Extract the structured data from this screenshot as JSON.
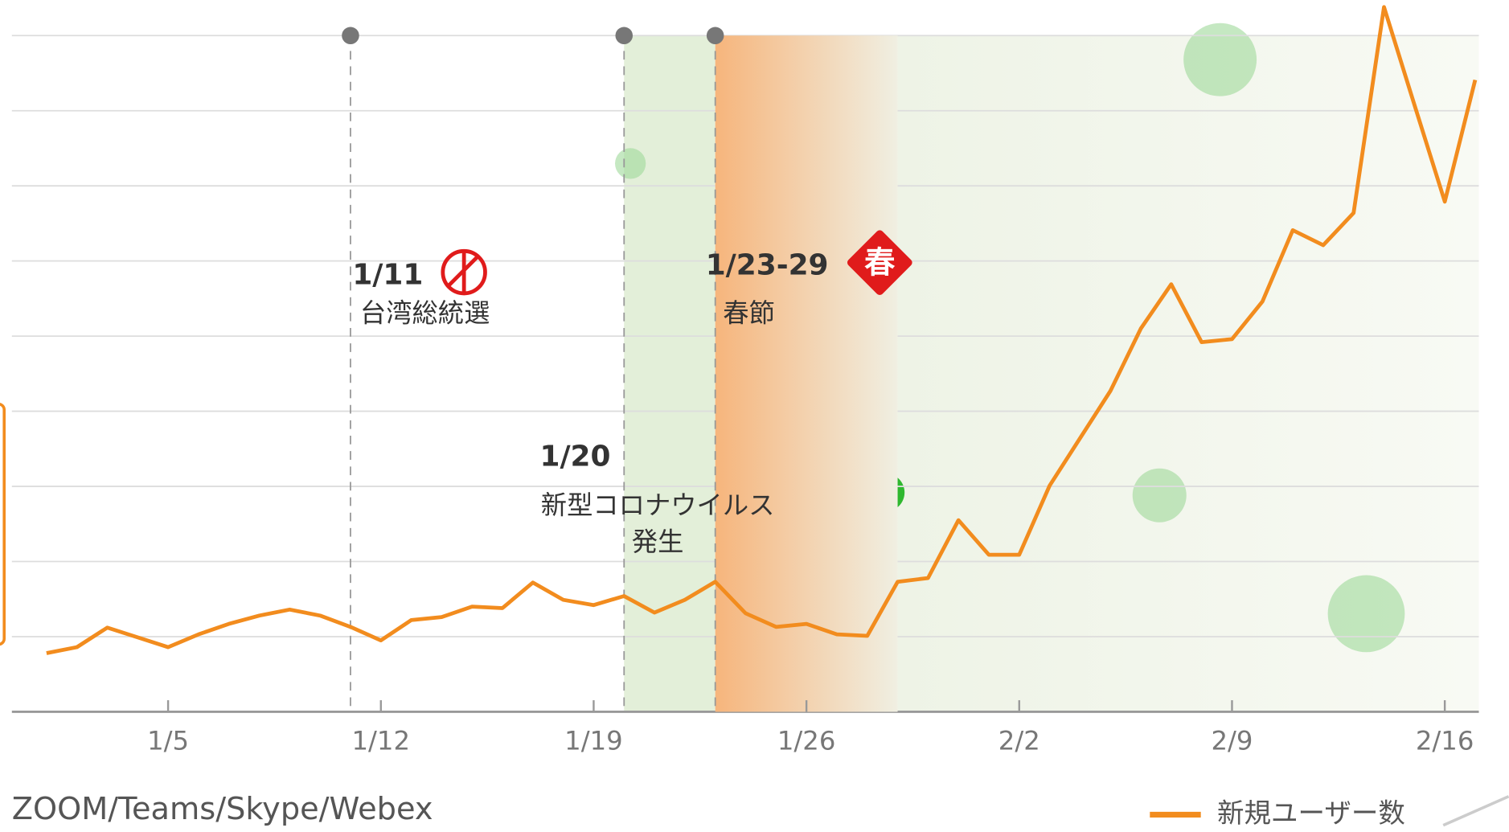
{
  "chart_data": {
    "type": "line",
    "categories": [
      null,
      null,
      null,
      null,
      "1/5",
      null,
      null,
      null,
      null,
      null,
      null,
      "1/12",
      null,
      null,
      null,
      null,
      null,
      null,
      "1/19",
      null,
      null,
      null,
      null,
      null,
      null,
      "1/26",
      null,
      null,
      null,
      null,
      null,
      null,
      "2/2",
      null,
      null,
      null,
      null,
      null,
      null,
      "2/9",
      null,
      null,
      null,
      null,
      null,
      null,
      "2/16",
      null
    ],
    "series": [
      {
        "name": "新規ユーザー数",
        "color": "#f28c1e",
        "values": [
          0.78,
          0.86,
          1.12,
          0.99,
          0.86,
          1.03,
          1.17,
          1.28,
          1.36,
          1.28,
          1.13,
          0.95,
          1.22,
          1.26,
          1.4,
          1.38,
          1.72,
          1.49,
          1.42,
          1.54,
          1.32,
          1.49,
          1.73,
          1.31,
          1.13,
          1.17,
          1.03,
          1.01,
          1.73,
          1.78,
          2.55,
          2.09,
          2.09,
          3.01,
          3.64,
          4.27,
          5.1,
          5.69,
          4.92,
          4.96,
          5.46,
          6.41,
          6.21,
          6.64,
          9.38,
          8.08,
          6.79,
          8.41
        ]
      }
    ],
    "ylim": [
      0,
      9
    ],
    "yticks": [
      0,
      1,
      2,
      3,
      4,
      5,
      6,
      7,
      8,
      9
    ],
    "ytick_labels": false,
    "grid": true,
    "annotations": [
      {
        "date": "1/11",
        "label": [
          "台湾総統選"
        ]
      },
      {
        "date": "1/20",
        "label": [
          "新型コロナウイルス",
          "発生"
        ]
      },
      {
        "date": "1/23-29",
        "label": [
          "春節"
        ],
        "badge": "春"
      }
    ],
    "source": "ZOOM/Teams/Skype/Webex",
    "legend": "bottom-right"
  }
}
